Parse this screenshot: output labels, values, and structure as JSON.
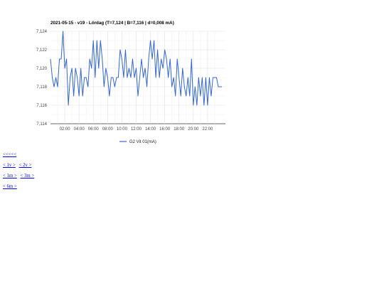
{
  "chart_data": {
    "type": "line",
    "title": "2021-05-15 - v19 - Lördag (T=7,124 | B=7,116 | d=0,008 mA)",
    "xlabel": "",
    "ylabel": "",
    "x_ticks": [
      "02:00",
      "04:00",
      "06:00",
      "08:00",
      "10:00",
      "12:00",
      "14:00",
      "16:00",
      "18:00",
      "20:00",
      "22:00"
    ],
    "x_range_hours": [
      0,
      24.5
    ],
    "y_ticks": [
      "7,114",
      "7,116",
      "7,118",
      "7,120",
      "7,122",
      "7,124"
    ],
    "ylim": [
      7.114,
      7.124
    ],
    "grid": true,
    "legend_position": "bottom",
    "series": [
      {
        "name": "G2 Vit 01(mA)",
        "color": "#3366cc",
        "x_hours": [
          0.0,
          0.25,
          0.5,
          0.75,
          1.0,
          1.25,
          1.5,
          1.75,
          2.0,
          2.25,
          2.5,
          2.75,
          3.0,
          3.25,
          3.5,
          3.75,
          4.0,
          4.25,
          4.5,
          4.75,
          5.0,
          5.25,
          5.5,
          5.75,
          6.0,
          6.25,
          6.5,
          6.75,
          7.0,
          7.25,
          7.5,
          7.75,
          8.0,
          8.25,
          8.5,
          8.75,
          9.0,
          9.25,
          9.5,
          9.75,
          10.0,
          10.25,
          10.5,
          10.75,
          11.0,
          11.25,
          11.5,
          11.75,
          12.0,
          12.25,
          12.5,
          12.75,
          13.0,
          13.25,
          13.5,
          13.75,
          14.0,
          14.25,
          14.5,
          14.75,
          15.0,
          15.25,
          15.5,
          15.75,
          16.0,
          16.25,
          16.5,
          16.75,
          17.0,
          17.25,
          17.5,
          17.75,
          18.0,
          18.25,
          18.5,
          18.75,
          19.0,
          19.25,
          19.5,
          19.75,
          20.0,
          20.25,
          20.5,
          20.75,
          21.0,
          21.25,
          21.5,
          21.75,
          22.0,
          22.25,
          22.5,
          22.75,
          23.0,
          23.25,
          23.5,
          23.75,
          24.0
        ],
        "values": [
          7.121,
          7.119,
          7.118,
          7.119,
          7.118,
          7.121,
          7.121,
          7.124,
          7.12,
          7.121,
          7.116,
          7.119,
          7.12,
          7.117,
          7.12,
          7.119,
          7.117,
          7.12,
          7.117,
          7.119,
          7.119,
          7.118,
          7.121,
          7.12,
          7.123,
          7.119,
          7.123,
          7.12,
          7.123,
          7.121,
          7.118,
          7.12,
          7.119,
          7.117,
          7.119,
          7.119,
          7.118,
          7.119,
          7.119,
          7.122,
          7.121,
          7.119,
          7.122,
          7.119,
          7.12,
          7.119,
          7.121,
          7.119,
          7.12,
          7.117,
          7.119,
          7.121,
          7.119,
          7.12,
          7.118,
          7.121,
          7.123,
          7.121,
          7.123,
          7.119,
          7.122,
          7.119,
          7.121,
          7.12,
          7.122,
          7.121,
          7.119,
          7.121,
          7.118,
          7.119,
          7.117,
          7.121,
          7.119,
          7.117,
          7.12,
          7.118,
          7.117,
          7.119,
          7.117,
          7.121,
          7.116,
          7.118,
          7.116,
          7.119,
          7.117,
          7.119,
          7.116,
          7.119,
          7.116,
          7.119,
          7.117,
          7.119,
          7.119,
          7.119,
          7.118,
          7.118,
          7.118
        ]
      }
    ]
  },
  "nav": {
    "row1": [
      "<<<<<"
    ],
    "row2": [
      "< 1v >",
      "< 2v >"
    ],
    "row3": [
      "< 1m >",
      "< 3m >"
    ],
    "row4": [
      "< 6m >"
    ]
  }
}
